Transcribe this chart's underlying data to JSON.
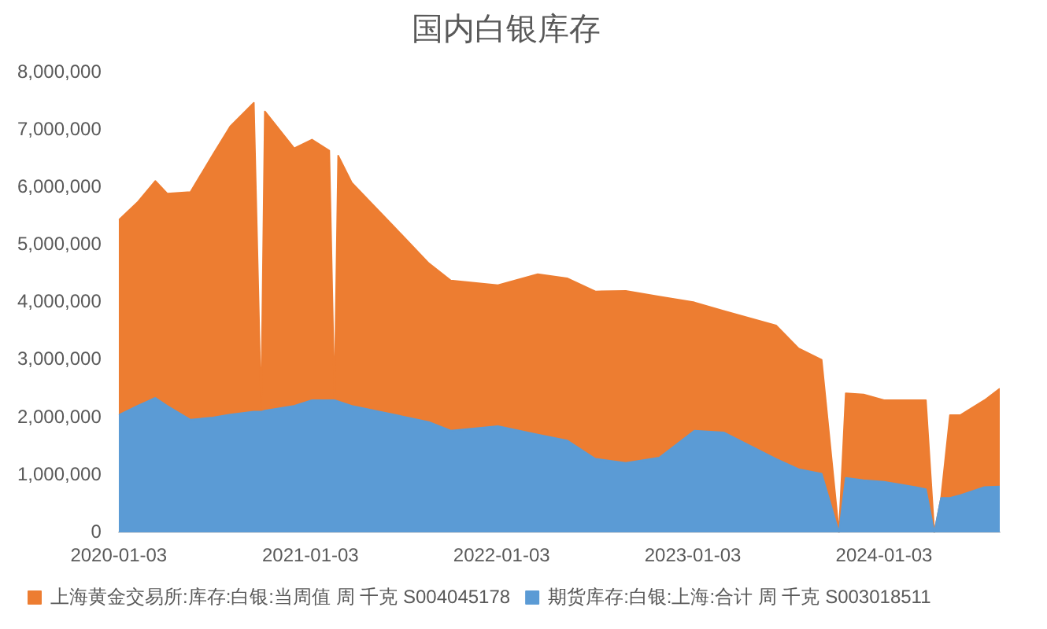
{
  "chart_data": {
    "type": "area",
    "title": "国内白银库存",
    "stacked": true,
    "grid": false,
    "legend": "bottom",
    "marker": "none",
    "x": [
      "2020-01-03",
      "2020-02-08",
      "2020-03-13",
      "2020-04-05",
      "2020-05-19",
      "2020-07-01",
      "2020-08-03",
      "2020-09-17",
      "2020-10-01",
      "2020-10-08",
      "2020-12-03",
      "2021-01-06",
      "2021-02-08",
      "2021-02-18",
      "2021-02-25",
      "2021-03-23",
      "2021-06-11",
      "2021-08-17",
      "2021-09-28",
      "2021-12-27",
      "2022-03-13",
      "2022-05-08",
      "2022-07-01",
      "2022-08-28",
      "2022-10-31",
      "2023-01-06",
      "2023-03-03",
      "2023-06-11",
      "2023-07-24",
      "2023-09-06",
      "2023-10-09",
      "2023-10-22",
      "2023-11-25",
      "2024-01-03",
      "2024-03-03",
      "2024-03-23",
      "2024-04-08",
      "2024-04-21",
      "2024-05-08",
      "2024-05-28",
      "2024-07-13",
      "2024-08-11"
    ],
    "series": [
      {
        "name": "期货库存:白银:上海:合计 周 千克 S003018511",
        "color": "#5b9bd5",
        "values": [
          2040000,
          2200000,
          2340000,
          2200000,
          1960000,
          2000000,
          2050000,
          2100000,
          2100000,
          2120000,
          2200000,
          2300000,
          2300000,
          2300000,
          2280000,
          2200000,
          2050000,
          1920000,
          1770000,
          1850000,
          1700000,
          1600000,
          1280000,
          1210000,
          1300000,
          1770000,
          1740000,
          1280000,
          1100000,
          1020000,
          0,
          950000,
          910000,
          880000,
          790000,
          750000,
          0,
          600000,
          600000,
          650000,
          790000,
          800000
        ]
      },
      {
        "name": "上海黄金交易所:库存:白银:当周值 周 千克 S004045178",
        "color": "#ed7d31",
        "values": [
          3390000,
          3540000,
          3770000,
          3690000,
          3960000,
          4570000,
          5010000,
          5370000,
          0,
          5200000,
          4480000,
          4530000,
          4340000,
          0,
          4270000,
          3880000,
          3270000,
          2760000,
          2610000,
          2450000,
          2790000,
          2820000,
          2910000,
          2990000,
          2800000,
          2230000,
          2110000,
          2320000,
          2100000,
          1980000,
          0,
          1470000,
          1490000,
          1420000,
          1510000,
          1550000,
          0,
          0,
          1440000,
          1390000,
          1510000,
          1700000
        ]
      }
    ],
    "xlim": [
      "2020-01-03",
      "2024-08-11"
    ],
    "xticks": [
      "2020-01-03",
      "2021-01-03",
      "2022-01-03",
      "2023-01-03",
      "2024-01-03"
    ],
    "ylim": [
      0,
      8000000
    ],
    "yticks": [
      {
        "value": 0,
        "label": "0"
      },
      {
        "value": 1000000,
        "label": "1,000,000"
      },
      {
        "value": 2000000,
        "label": "2,000,000"
      },
      {
        "value": 3000000,
        "label": "3,000,000"
      },
      {
        "value": 4000000,
        "label": "4,000,000"
      },
      {
        "value": 5000000,
        "label": "5,000,000"
      },
      {
        "value": 6000000,
        "label": "6,000,000"
      },
      {
        "value": 7000000,
        "label": "7,000,000"
      },
      {
        "value": 8000000,
        "label": "8,000,000"
      }
    ]
  }
}
